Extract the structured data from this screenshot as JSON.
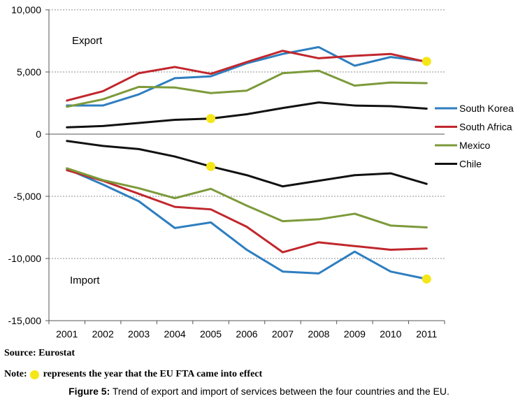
{
  "chart_data": {
    "type": "line",
    "categories": [
      "2001",
      "2002",
      "2003",
      "2004",
      "2005",
      "2006",
      "2007",
      "2008",
      "2009",
      "2010",
      "2011"
    ],
    "ylim": [
      -15000,
      10000
    ],
    "yticks": [
      10000,
      5000,
      0,
      -5000,
      -10000,
      -15000
    ],
    "ytick_labels": [
      "10,000",
      "5,000",
      "0",
      "-5,000",
      "-10,000",
      "-15,000"
    ],
    "grid": true,
    "legend_position": "right",
    "annotations": {
      "export": "Export",
      "import": "Import"
    },
    "series": [
      {
        "name": "South Korea",
        "color": "#2e7ebf",
        "export": [
          2300,
          2300,
          3200,
          4500,
          4650,
          5700,
          6450,
          7000,
          5500,
          6200,
          5850
        ],
        "import": [
          -2800,
          -4050,
          -5400,
          -7550,
          -7100,
          -9300,
          -11050,
          -11200,
          -9450,
          -11050,
          -11650
        ]
      },
      {
        "name": "South Africa",
        "color": "#c0272d",
        "export": [
          2700,
          3450,
          4900,
          5400,
          4850,
          5800,
          6700,
          6100,
          6300,
          6450,
          5800
        ],
        "import": [
          -2900,
          -3750,
          -4800,
          -5850,
          -6050,
          -7450,
          -9500,
          -8700,
          -9000,
          -9300,
          -9200
        ]
      },
      {
        "name": "Mexico",
        "color": "#7c9a3a",
        "export": [
          2200,
          2800,
          3800,
          3750,
          3300,
          3500,
          4900,
          5100,
          3900,
          4150,
          4100
        ],
        "import": [
          -2750,
          -3700,
          -4350,
          -5150,
          -4400,
          -5750,
          -7000,
          -6850,
          -6400,
          -7350,
          -7500
        ]
      },
      {
        "name": "Chile",
        "color": "#111111",
        "export": [
          550,
          650,
          900,
          1150,
          1250,
          1600,
          2100,
          2550,
          2300,
          2250,
          2050
        ],
        "import": [
          -550,
          -950,
          -1200,
          -1800,
          -2600,
          -3300,
          -4200,
          -3750,
          -3300,
          -3150,
          -4000
        ]
      }
    ],
    "fta_markers": [
      {
        "year": "2005",
        "value": 1250
      },
      {
        "year": "2005",
        "value": -2600
      },
      {
        "year": "2011",
        "value": 5850
      },
      {
        "year": "2011",
        "value": -11650
      }
    ],
    "marker_color": "#f5e617"
  },
  "footer": {
    "source": "Source: Eurostat",
    "note_prefix": "Note:",
    "note_text": "represents the year that the EU FTA came into effect",
    "caption_label": "Figure 5:",
    "caption_text": " Trend of export and import of services between the four countries and the EU."
  }
}
